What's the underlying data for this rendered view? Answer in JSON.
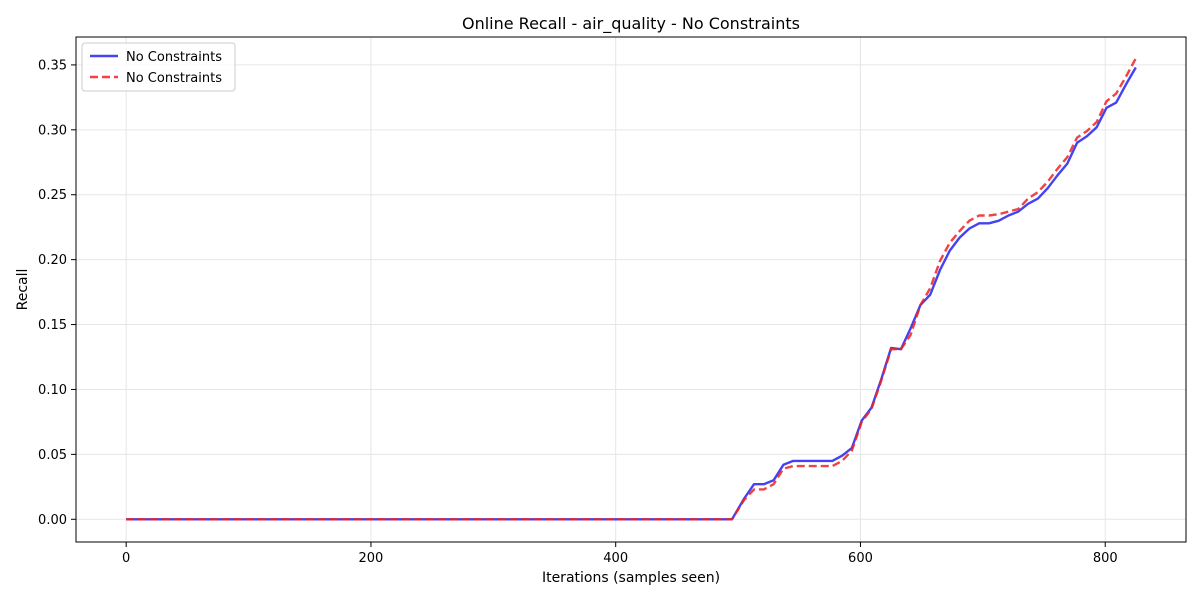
{
  "chart_data": {
    "type": "line",
    "title": "Online Recall - air_quality - No Constraints",
    "xlabel": "Iterations (samples seen)",
    "ylabel": "Recall",
    "xlim": [
      -41,
      866
    ],
    "ylim": [
      -0.0175,
      0.3715
    ],
    "xticks": [
      0,
      200,
      400,
      600,
      800
    ],
    "yticks": [
      0.0,
      0.05,
      0.1,
      0.15,
      0.2,
      0.25,
      0.3,
      0.35
    ],
    "grid": true,
    "legend_position": "top-left",
    "series": [
      {
        "name": "No Constraints",
        "color": "#2222ee",
        "style": "solid",
        "x": [
          0,
          100,
          200,
          300,
          400,
          450,
          495,
          505,
          513,
          521,
          529,
          537,
          545,
          553,
          561,
          569,
          577,
          585,
          593,
          601,
          609,
          617,
          625,
          633,
          641,
          649,
          657,
          665,
          673,
          681,
          689,
          697,
          705,
          713,
          721,
          729,
          737,
          745,
          753,
          761,
          769,
          777,
          785,
          793,
          801,
          809,
          817,
          825
        ],
        "y": [
          0,
          0,
          0,
          0,
          0,
          0,
          0,
          0.016,
          0.027,
          0.027,
          0.03,
          0.042,
          0.045,
          0.045,
          0.045,
          0.045,
          0.045,
          0.049,
          0.055,
          0.076,
          0.086,
          0.108,
          0.132,
          0.131,
          0.147,
          0.165,
          0.173,
          0.192,
          0.207,
          0.217,
          0.224,
          0.228,
          0.228,
          0.23,
          0.234,
          0.237,
          0.243,
          0.247,
          0.255,
          0.265,
          0.274,
          0.29,
          0.295,
          0.302,
          0.317,
          0.321,
          0.335,
          0.348
        ]
      },
      {
        "name": "No Constraints",
        "color": "#ee2222",
        "style": "dashed",
        "x": [
          0,
          100,
          200,
          300,
          400,
          450,
          495,
          505,
          513,
          521,
          529,
          537,
          545,
          553,
          561,
          569,
          577,
          585,
          593,
          601,
          609,
          617,
          625,
          633,
          641,
          649,
          657,
          665,
          673,
          681,
          689,
          697,
          705,
          713,
          721,
          729,
          737,
          745,
          753,
          761,
          769,
          777,
          785,
          793,
          801,
          809,
          817,
          825
        ],
        "y": [
          0,
          0,
          0,
          0,
          0,
          0,
          0,
          0.015,
          0.023,
          0.023,
          0.027,
          0.039,
          0.041,
          0.041,
          0.041,
          0.041,
          0.041,
          0.045,
          0.053,
          0.075,
          0.085,
          0.107,
          0.131,
          0.131,
          0.142,
          0.165,
          0.178,
          0.199,
          0.213,
          0.222,
          0.23,
          0.234,
          0.234,
          0.235,
          0.237,
          0.239,
          0.247,
          0.252,
          0.26,
          0.27,
          0.279,
          0.294,
          0.299,
          0.306,
          0.322,
          0.328,
          0.341,
          0.355
        ]
      }
    ]
  }
}
